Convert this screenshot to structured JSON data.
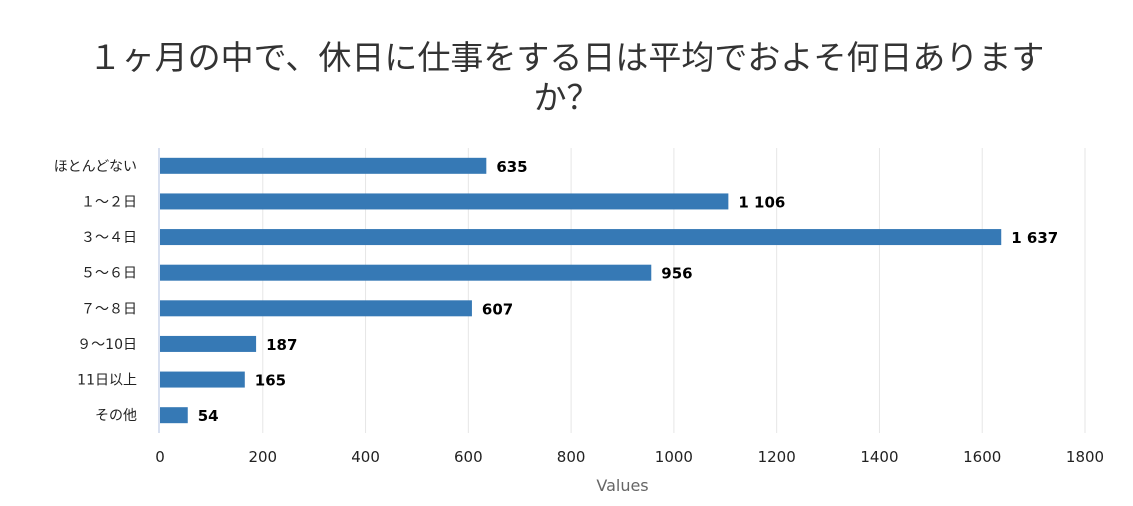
{
  "chart_data": {
    "type": "bar",
    "orientation": "horizontal",
    "title": [
      "１ヶ月の中で、休日に仕事をする日は平均でおよそ何日あります",
      "か？"
    ],
    "categories": [
      "ほとんどない",
      "１～２日",
      "３～４日",
      "５～６日",
      "７～８日",
      "９～10日",
      "11日以上",
      "その他"
    ],
    "values": [
      635,
      1106,
      1637,
      956,
      607,
      187,
      165,
      54
    ],
    "data_labels": [
      "635",
      "1 106",
      "1 637",
      "956",
      "607",
      "187",
      "165",
      "54"
    ],
    "xlabel": "Values",
    "ylabel": "",
    "xlim": [
      0,
      1800
    ],
    "xticks": [
      "0",
      "200",
      "400",
      "600",
      "800",
      "1000",
      "1200",
      "1400",
      "1600",
      "1800"
    ],
    "grid": true,
    "bar_color": "#3679b5"
  }
}
